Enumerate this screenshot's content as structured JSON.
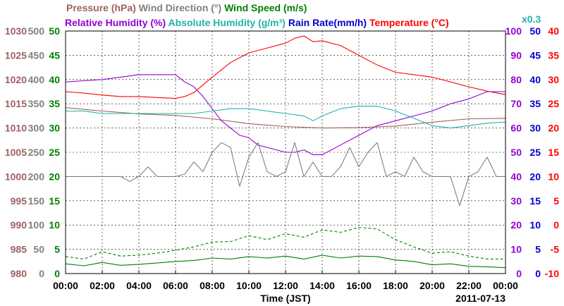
{
  "chart_data": {
    "type": "line",
    "date": "2011-07-13",
    "xlabel": "Time (JST)",
    "x_ticks": [
      "00:00",
      "02:00",
      "04:00",
      "06:00",
      "08:00",
      "10:00",
      "12:00",
      "14:00",
      "16:00",
      "18:00",
      "20:00",
      "22:00",
      "00:00"
    ],
    "x_range_hours": [
      0,
      24
    ],
    "grid": true,
    "title_row1": [
      {
        "text": "Pressure (hPa)",
        "color": "#a06060"
      },
      {
        "text": "Wind Direction (°)",
        "color": "#808080"
      },
      {
        "text": "Wind Speed (m/s)",
        "color": "#008000"
      }
    ],
    "title_row2": [
      {
        "text": "Relative Humidity (%)",
        "color": "#9400d3"
      },
      {
        "text": "Absolute Humidity (g/m³)",
        "color": "#20b2aa"
      },
      {
        "text": "Rain Rate(mm/h)",
        "color": "#0000cd"
      },
      {
        "text": "Temperature (°C)",
        "color": "#ff0000"
      }
    ],
    "rain_scale_label": {
      "text": "x0.3",
      "color": "#20b2aa"
    },
    "axes": [
      {
        "name": "pressure",
        "side": "left",
        "color": "#a06060",
        "ticks": [
          "980",
          "985",
          "990",
          "995",
          "1000",
          "1005",
          "1010",
          "1015",
          "1020",
          "1025",
          "1030"
        ],
        "range": [
          980,
          1030
        ]
      },
      {
        "name": "wind_direction",
        "side": "left",
        "color": "#808080",
        "ticks": [
          "0",
          "50",
          "100",
          "150",
          "200",
          "250",
          "300",
          "350",
          "400",
          "450",
          "500"
        ],
        "range": [
          0,
          500
        ]
      },
      {
        "name": "wind_speed",
        "side": "left",
        "color": "#008000",
        "ticks": [
          "0",
          "5",
          "10",
          "15",
          "20",
          "25",
          "30",
          "35",
          "40",
          "45",
          "50"
        ],
        "range": [
          0,
          50
        ]
      },
      {
        "name": "relative_humidity",
        "side": "right",
        "color": "#9400d3",
        "ticks": [
          "0",
          "10",
          "20",
          "30",
          "40",
          "50",
          "60",
          "70",
          "80",
          "90",
          "100"
        ],
        "range": [
          0,
          100
        ]
      },
      {
        "name": "rain_rate",
        "side": "right",
        "color": "#0000cd",
        "ticks": [
          "0",
          "5",
          "10",
          "15",
          "20",
          "25",
          "30",
          "35",
          "40",
          "45",
          "50"
        ],
        "range": [
          0,
          50
        ]
      },
      {
        "name": "temperature",
        "side": "right",
        "color": "#ff0000",
        "ticks": [
          "-10",
          "-5",
          "0",
          "5",
          "10",
          "15",
          "20",
          "25",
          "30",
          "35",
          "40"
        ],
        "range": [
          -10,
          40
        ]
      }
    ],
    "series": [
      {
        "name": "Pressure (hPa)",
        "axis": "pressure",
        "color": "#a06060",
        "x": [
          0,
          2,
          4,
          6,
          8,
          10,
          12,
          14,
          16,
          18,
          20,
          22,
          24
        ],
        "y": [
          1014.2,
          1013.5,
          1012.9,
          1012.6,
          1011.9,
          1010.9,
          1010.3,
          1010.0,
          1010.1,
          1010.4,
          1011.2,
          1011.9,
          1012.0
        ]
      },
      {
        "name": "Temperature (°C)",
        "axis": "temperature",
        "color": "#ff0000",
        "x": [
          0,
          1,
          2,
          3,
          4,
          5,
          6,
          6.5,
          7,
          8,
          9,
          10,
          11,
          12,
          12.5,
          13,
          13.5,
          14,
          15,
          16,
          17,
          18,
          19,
          20,
          21,
          22,
          23,
          24
        ],
        "y": [
          27.5,
          27.2,
          26.8,
          26.5,
          26.5,
          26.3,
          26.1,
          26.5,
          27.3,
          30.5,
          33.5,
          35.5,
          36.5,
          37.5,
          38.5,
          39.0,
          37.8,
          38.0,
          37.0,
          35.0,
          33.0,
          31.5,
          31.0,
          30.5,
          29.5,
          28.5,
          27.6,
          26.9
        ]
      },
      {
        "name": "Relative Humidity (%)",
        "axis": "relative_humidity",
        "color": "#9400d3",
        "x": [
          0,
          1,
          2,
          3,
          4,
          5,
          6,
          6.5,
          7,
          7.5,
          8,
          8.5,
          9,
          9.5,
          10,
          10.5,
          11,
          11.5,
          12,
          12.5,
          13,
          13.5,
          14,
          14.5,
          15,
          16,
          17,
          18,
          19,
          20,
          21,
          22,
          23,
          24
        ],
        "y": [
          79,
          79.5,
          80,
          81,
          82,
          82,
          82,
          79,
          77,
          73,
          68,
          63,
          60,
          57,
          56,
          53,
          52,
          51,
          50,
          50,
          51,
          49,
          49,
          51,
          53,
          57,
          61,
          63,
          65,
          67,
          70,
          72,
          75,
          75
        ]
      },
      {
        "name": "Absolute Humidity (g/m³)",
        "axis": "relative_humidity",
        "color": "#20b2aa",
        "x": [
          0,
          1,
          2,
          3,
          4,
          5,
          6,
          7,
          8,
          9,
          10,
          11,
          12,
          13,
          13.5,
          14,
          15,
          16,
          17,
          18,
          19,
          20,
          21,
          22,
          23,
          24
        ],
        "y": [
          67,
          67,
          66,
          66,
          66,
          66,
          66,
          66,
          67,
          68,
          68,
          67,
          66,
          65,
          63,
          65,
          68,
          69,
          69,
          67,
          64,
          61,
          60,
          61,
          62,
          62.5
        ]
      },
      {
        "name": "Wind Direction (°)",
        "axis": "wind_direction",
        "color": "#808080",
        "x": [
          0,
          0.5,
          1,
          1.5,
          2,
          2.5,
          3,
          3.5,
          4,
          4.5,
          5,
          5.5,
          6,
          6.5,
          7,
          7.5,
          8,
          8.5,
          9,
          9.5,
          10,
          10.5,
          11,
          11.5,
          12,
          12.5,
          13,
          13.5,
          14,
          14.5,
          15,
          15.5,
          16,
          16.5,
          17,
          17.5,
          18,
          18.5,
          19,
          19.5,
          20,
          20.5,
          21,
          21.5,
          22,
          22.5,
          23,
          23.5,
          24
        ],
        "y": [
          200,
          200,
          200,
          200,
          200,
          200,
          200,
          190,
          200,
          220,
          200,
          200,
          200,
          205,
          230,
          210,
          250,
          270,
          260,
          180,
          240,
          270,
          210,
          200,
          210,
          270,
          200,
          230,
          200,
          200,
          220,
          260,
          220,
          250,
          270,
          200,
          210,
          200,
          240,
          210,
          200,
          200,
          200,
          140,
          200,
          210,
          240,
          200,
          200
        ]
      },
      {
        "name": "Wind Speed (m/s)",
        "axis": "wind_speed",
        "color": "#008000",
        "x": [
          0,
          1,
          2,
          3,
          4,
          5,
          6,
          7,
          8,
          9,
          10,
          11,
          12,
          13,
          14,
          15,
          16,
          17,
          18,
          19,
          20,
          21,
          22,
          23,
          24
        ],
        "y": [
          2.0,
          1.6,
          2.3,
          1.7,
          1.9,
          2.2,
          2.5,
          2.7,
          3.2,
          3.0,
          3.5,
          3.2,
          3.6,
          3.0,
          3.8,
          3.2,
          3.6,
          3.5,
          2.8,
          2.5,
          1.8,
          2.0,
          1.5,
          1.4,
          1.2
        ]
      },
      {
        "name": "Wind Speed gust (m/s)",
        "axis": "wind_speed",
        "color": "#008000",
        "dashed": true,
        "x": [
          0,
          1,
          2,
          3,
          4,
          5,
          6,
          7,
          8,
          9,
          10,
          11,
          12,
          13,
          14,
          15,
          16,
          17,
          18,
          19,
          20,
          21,
          22,
          23,
          24
        ],
        "y": [
          3.5,
          3.0,
          4.5,
          3.6,
          3.8,
          4.2,
          4.8,
          5.5,
          6.5,
          6.6,
          7.8,
          7.0,
          8.2,
          7.5,
          9.0,
          8.5,
          9.5,
          9.2,
          7.0,
          5.5,
          4.2,
          4.5,
          3.6,
          3.0,
          3.0
        ]
      }
    ]
  }
}
